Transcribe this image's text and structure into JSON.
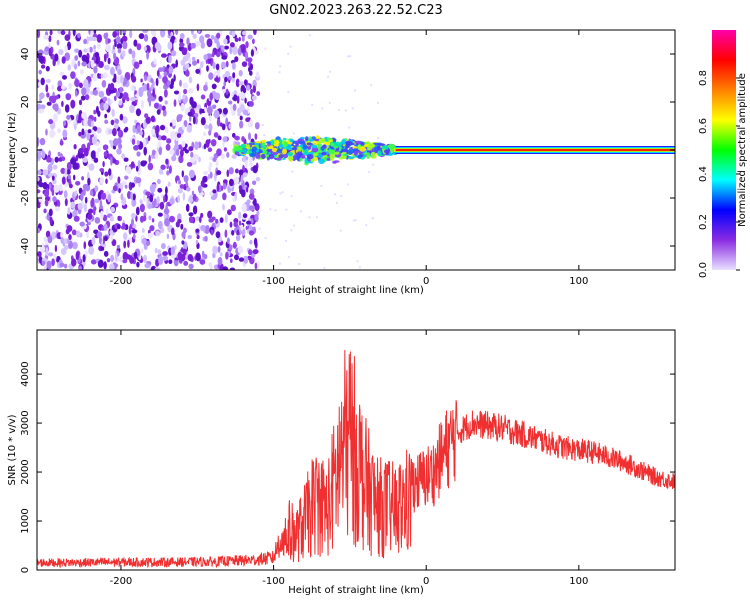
{
  "figure": {
    "title": "GN02.2023.263.22.52.C23"
  },
  "chart_data": [
    {
      "type": "heatmap",
      "name": "spectrogram",
      "xlabel": "Height of straight line (km)",
      "ylabel": "Frequency (Hz)",
      "xlim": [
        -255,
        163
      ],
      "ylim": [
        -50,
        50
      ],
      "xticks": [
        -200,
        -100,
        0,
        100
      ],
      "yticks": [
        -40,
        -20,
        0,
        20,
        40
      ],
      "grid": false,
      "noise_region_x": [
        -255,
        -110
      ],
      "signal_line_x": [
        -125,
        163
      ],
      "signal_line_y": 0,
      "colorbar": {
        "label": "Normalized spectral amplitude",
        "range": [
          0.0,
          1.0
        ],
        "ticks": [
          "0.0",
          "0.2",
          "0.4",
          "0.6",
          "0.8"
        ],
        "colors": [
          "#e8e0ff",
          "#8a2be2",
          "#0000ff",
          "#00ffff",
          "#00ff00",
          "#ffff00",
          "#ff8000",
          "#ff0000",
          "#ff00aa"
        ]
      }
    },
    {
      "type": "line",
      "name": "snr",
      "xlabel": "Height of straight line (km)",
      "ylabel": "SNR (10 * v/v)",
      "xlim": [
        -255,
        163
      ],
      "ylim": [
        0,
        4900
      ],
      "xticks": [
        -200,
        -100,
        0,
        100
      ],
      "yticks": [
        0,
        1000,
        2000,
        3000,
        4000
      ],
      "grid": false,
      "color": "#f03030",
      "series": [
        {
          "x": [
            -255,
            -230,
            -200,
            -170,
            -140,
            -115,
            -100,
            -95,
            -90,
            -85,
            -80,
            -75,
            -70,
            -65,
            -60,
            -55,
            -50,
            -45,
            -40,
            -35,
            -30,
            -25,
            -20,
            -15,
            -10,
            -5,
            0,
            5,
            10,
            20,
            30,
            40,
            50,
            60,
            70,
            80,
            90,
            100,
            110,
            120,
            130,
            140,
            150,
            163
          ],
          "values": [
            150,
            150,
            160,
            160,
            170,
            200,
            250,
            700,
            1000,
            900,
            1200,
            1600,
            1800,
            1500,
            2200,
            3000,
            3400,
            2800,
            2200,
            1800,
            1600,
            1600,
            1500,
            1700,
            1800,
            1800,
            1900,
            2000,
            2300,
            2800,
            3000,
            2950,
            2900,
            2800,
            2700,
            2600,
            2500,
            2450,
            2400,
            2300,
            2200,
            2050,
            1900,
            1800
          ]
        }
      ]
    }
  ]
}
